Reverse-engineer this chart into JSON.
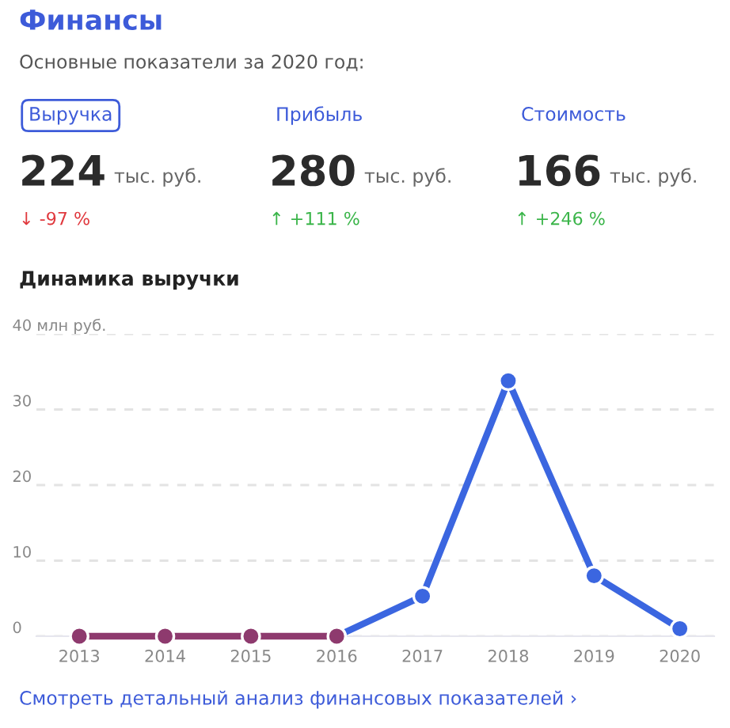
{
  "chart_data": [
    {
      "type": "other",
      "title": "Финансы",
      "subtitle": "Основные показатели за 2020 год:",
      "annotations": [
        "Выручка",
        "224",
        "тыс. руб.",
        "↓ -97 %",
        "Прибыль",
        "280",
        "тыс. руб.",
        "↑ +111 %",
        "Стоимость",
        "166",
        "тыс. руб.",
        "↑ +246 %"
      ],
      "colors": [
        "#e0393e",
        "#3bb54a",
        "#3bb54a"
      ]
    },
    {
      "type": "line",
      "title": "Динамика выручки",
      "categories": [
        "2013",
        "2014",
        "2015",
        "2016",
        "2017",
        "2018",
        "2019",
        "2020"
      ],
      "series": [
        {
          "color": "#8e3a6e",
          "values": [
            0,
            0,
            0,
            0,
            null,
            null,
            null,
            null
          ]
        },
        {
          "color": "#3b66e0",
          "values": [
            null,
            null,
            null,
            0,
            5.3,
            33.8,
            8.0,
            1.0
          ]
        }
      ],
      "ylim": [
        0,
        40
      ],
      "yticks": [
        0,
        10,
        20,
        30,
        {
          "value": 40,
          "label": "40 млн руб."
        }
      ],
      "grid": "y",
      "marker": "circle",
      "line_style": "solid",
      "annotations": [
        "Смотреть детальный анализ финансовых показателей ›"
      ]
    }
  ]
}
